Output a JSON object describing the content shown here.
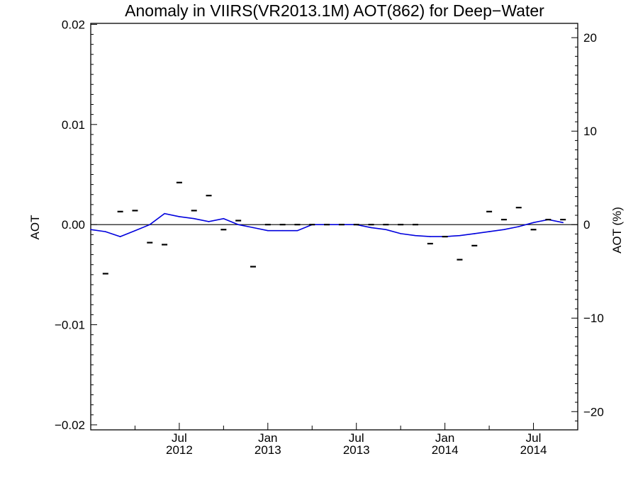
{
  "chart_data": {
    "type": "line",
    "title": "Anomaly in VIIRS(VR2013.1M) AOT(862) for Deep−Water",
    "ylabel": "AOT",
    "y2label": "AOT (%)",
    "xlabel": "",
    "ylim": [
      -0.0205,
      0.0201
    ],
    "y2lim": [
      -21.95,
      21.53
    ],
    "grid": false,
    "y_ticks": [
      0.02,
      0.01,
      0.0,
      -0.01,
      -0.02
    ],
    "y_tick_labels": [
      "0.02",
      "0.01",
      "0.00",
      "−0.01",
      "−0.02"
    ],
    "y2_ticks": [
      20,
      10,
      0,
      -10,
      -20
    ],
    "y2_tick_labels": [
      "20",
      "10",
      "0",
      "−10",
      "−20"
    ],
    "x_ticks": [
      {
        "month": "Jul",
        "year": "2012",
        "date": "2012-07"
      },
      {
        "month": "Jan",
        "year": "2013",
        "date": "2013-01"
      },
      {
        "month": "Jul",
        "year": "2013",
        "date": "2013-07"
      },
      {
        "month": "Jan",
        "year": "2014",
        "date": "2014-01"
      },
      {
        "month": "Jul",
        "year": "2014",
        "date": "2014-07"
      }
    ],
    "x_range": [
      "2012-01",
      "2014-10"
    ],
    "series": [
      {
        "kind": "line",
        "color": "#0000dd",
        "x": [
          "2012-01",
          "2012-02",
          "2012-03",
          "2012-04",
          "2012-05",
          "2012-06",
          "2012-07",
          "2012-08",
          "2012-09",
          "2012-10",
          "2012-11",
          "2012-12",
          "2013-01",
          "2013-02",
          "2013-03",
          "2013-04",
          "2013-05",
          "2013-06",
          "2013-07",
          "2013-08",
          "2013-09",
          "2013-10",
          "2013-11",
          "2013-12",
          "2014-01",
          "2014-02",
          "2014-03",
          "2014-04",
          "2014-05",
          "2014-06",
          "2014-07",
          "2014-08",
          "2014-09"
        ],
        "values": [
          -0.0005,
          -0.0007,
          -0.0012,
          -0.0006,
          0.0,
          0.0011,
          0.0008,
          0.0006,
          0.0003,
          0.0006,
          0.0,
          -0.0003,
          -0.0006,
          -0.0006,
          -0.0006,
          0.0,
          0.0,
          0.0,
          0.0,
          -0.0003,
          -0.0005,
          -0.0009,
          -0.0011,
          -0.0012,
          -0.0012,
          -0.0011,
          -0.0009,
          -0.0007,
          -0.0005,
          -0.0002,
          0.0002,
          0.0005,
          0.0002
        ]
      },
      {
        "kind": "markers",
        "marker": "dash",
        "color": "#000000",
        "x": [
          "2012-02",
          "2012-03",
          "2012-04",
          "2012-05",
          "2012-06",
          "2012-07",
          "2012-08",
          "2012-09",
          "2012-10",
          "2012-11",
          "2012-12",
          "2013-01",
          "2013-02",
          "2013-03",
          "2013-04",
          "2013-05",
          "2013-06",
          "2013-07",
          "2013-08",
          "2013-09",
          "2013-10",
          "2013-11",
          "2013-12",
          "2014-01",
          "2014-02",
          "2014-03",
          "2014-04",
          "2014-05",
          "2014-06",
          "2014-07",
          "2014-08",
          "2014-09"
        ],
        "values": [
          -0.0049,
          0.0013,
          0.0014,
          -0.0018,
          -0.002,
          0.0042,
          0.0014,
          0.0029,
          -0.0005,
          0.0004,
          -0.0042,
          0.0,
          0.0,
          0.0,
          0.0,
          0.0,
          0.0,
          0.0,
          0.0,
          0.0,
          0.0,
          0.0,
          -0.0019,
          -0.0012,
          -0.0035,
          -0.0021,
          0.0013,
          0.0005,
          0.0017,
          -0.0005,
          0.0005,
          0.0005
        ]
      }
    ]
  }
}
